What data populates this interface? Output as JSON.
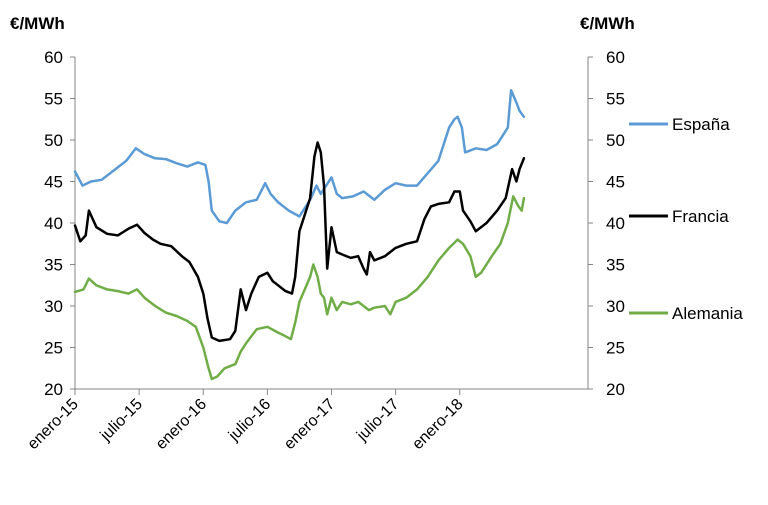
{
  "chart_data": {
    "type": "line",
    "title": "",
    "y_unit_left": "€/MWh",
    "y_unit_right": "€/MWh",
    "ylim": [
      20,
      60
    ],
    "yticks": [
      20,
      25,
      30,
      35,
      40,
      45,
      50,
      55,
      60
    ],
    "xlim": [
      0,
      48
    ],
    "x_unit": "months since enero-15",
    "xticks": [
      {
        "label": "enero-15",
        "x": 0
      },
      {
        "label": "julio-15",
        "x": 6
      },
      {
        "label": "enero-16",
        "x": 12
      },
      {
        "label": "julio-16",
        "x": 18
      },
      {
        "label": "enero-17",
        "x": 24
      },
      {
        "label": "julio-17",
        "x": 30
      },
      {
        "label": "enero-18",
        "x": 36
      }
    ],
    "legend_position": "right",
    "series": [
      {
        "name": "España",
        "color": "#5b9bd5",
        "points": [
          [
            0,
            46.2
          ],
          [
            0.7,
            44.5
          ],
          [
            1.5,
            45.0
          ],
          [
            2.5,
            45.2
          ],
          [
            3.5,
            46.2
          ],
          [
            4.8,
            47.5
          ],
          [
            5.7,
            49.0
          ],
          [
            6.5,
            48.3
          ],
          [
            7.5,
            47.8
          ],
          [
            8.5,
            47.7
          ],
          [
            9.5,
            47.2
          ],
          [
            10.5,
            46.8
          ],
          [
            11.5,
            47.3
          ],
          [
            12.2,
            47.0
          ],
          [
            12.5,
            45.0
          ],
          [
            12.8,
            41.5
          ],
          [
            13.5,
            40.2
          ],
          [
            14.2,
            40.0
          ],
          [
            15,
            41.5
          ],
          [
            16,
            42.5
          ],
          [
            17,
            42.8
          ],
          [
            17.8,
            44.8
          ],
          [
            18.3,
            43.5
          ],
          [
            19,
            42.5
          ],
          [
            20,
            41.5
          ],
          [
            21,
            40.8
          ],
          [
            21.5,
            41.8
          ],
          [
            22,
            42.8
          ],
          [
            22.6,
            44.5
          ],
          [
            23,
            43.5
          ],
          [
            23.5,
            44.5
          ],
          [
            24,
            45.5
          ],
          [
            24.5,
            43.5
          ],
          [
            25,
            43.0
          ],
          [
            26,
            43.2
          ],
          [
            27,
            43.8
          ],
          [
            28,
            42.8
          ],
          [
            29,
            44.0
          ],
          [
            30,
            44.8
          ],
          [
            31,
            44.5
          ],
          [
            32,
            44.5
          ],
          [
            33,
            46.0
          ],
          [
            34,
            47.5
          ],
          [
            35,
            51.5
          ],
          [
            35.5,
            52.5
          ],
          [
            35.8,
            52.8
          ],
          [
            36.2,
            51.5
          ],
          [
            36.5,
            48.5
          ],
          [
            37.5,
            49.0
          ],
          [
            38.5,
            48.8
          ],
          [
            39.5,
            49.5
          ],
          [
            40,
            50.5
          ],
          [
            40.5,
            51.5
          ],
          [
            40.8,
            56.0
          ],
          [
            41.3,
            54.5
          ],
          [
            41.6,
            53.5
          ],
          [
            42,
            52.8
          ]
        ]
      },
      {
        "name": "Francia",
        "color": "#000000",
        "points": [
          [
            0,
            39.7
          ],
          [
            0.5,
            37.8
          ],
          [
            1,
            38.5
          ],
          [
            1.3,
            41.5
          ],
          [
            2,
            39.5
          ],
          [
            3,
            38.7
          ],
          [
            4,
            38.5
          ],
          [
            5,
            39.3
          ],
          [
            5.8,
            39.8
          ],
          [
            6.5,
            38.8
          ],
          [
            7.3,
            38.0
          ],
          [
            8,
            37.5
          ],
          [
            9,
            37.2
          ],
          [
            10,
            36.0
          ],
          [
            10.7,
            35.3
          ],
          [
            11.5,
            33.5
          ],
          [
            12,
            31.5
          ],
          [
            12.4,
            28.5
          ],
          [
            12.8,
            26.2
          ],
          [
            13.5,
            25.8
          ],
          [
            14.5,
            26.0
          ],
          [
            15,
            27.0
          ],
          [
            15.5,
            32.0
          ],
          [
            16,
            29.5
          ],
          [
            16.5,
            31.5
          ],
          [
            17.2,
            33.5
          ],
          [
            18,
            34.0
          ],
          [
            18.5,
            33.0
          ],
          [
            19,
            32.5
          ],
          [
            19.7,
            31.8
          ],
          [
            20.3,
            31.5
          ],
          [
            20.6,
            33.5
          ],
          [
            21,
            39.0
          ],
          [
            21.5,
            41.0
          ],
          [
            22,
            43.0
          ],
          [
            22.4,
            48.0
          ],
          [
            22.7,
            49.7
          ],
          [
            23,
            48.5
          ],
          [
            23.3,
            44.5
          ],
          [
            23.6,
            34.5
          ],
          [
            24,
            39.5
          ],
          [
            24.5,
            36.5
          ],
          [
            25,
            36.2
          ],
          [
            25.8,
            35.8
          ],
          [
            26.5,
            36.0
          ],
          [
            27,
            34.5
          ],
          [
            27.3,
            33.8
          ],
          [
            27.6,
            36.5
          ],
          [
            28,
            35.5
          ],
          [
            29,
            36.0
          ],
          [
            30,
            37.0
          ],
          [
            31,
            37.5
          ],
          [
            32,
            37.8
          ],
          [
            32.7,
            40.5
          ],
          [
            33.3,
            42.0
          ],
          [
            34,
            42.3
          ],
          [
            35,
            42.5
          ],
          [
            35.5,
            43.8
          ],
          [
            36,
            43.8
          ],
          [
            36.3,
            41.5
          ],
          [
            37,
            40.2
          ],
          [
            37.5,
            39.0
          ],
          [
            38.5,
            40.0
          ],
          [
            39.5,
            41.5
          ],
          [
            40.3,
            43.0
          ],
          [
            40.9,
            46.5
          ],
          [
            41.3,
            45.0
          ],
          [
            41.6,
            46.5
          ],
          [
            42,
            47.8
          ]
        ]
      },
      {
        "name": "Alemania",
        "color": "#70ad47",
        "points": [
          [
            0,
            31.7
          ],
          [
            0.8,
            32.0
          ],
          [
            1.3,
            33.3
          ],
          [
            2,
            32.5
          ],
          [
            3,
            32.0
          ],
          [
            4,
            31.8
          ],
          [
            5,
            31.5
          ],
          [
            5.8,
            32.0
          ],
          [
            6.5,
            31.0
          ],
          [
            7.5,
            30.0
          ],
          [
            8.5,
            29.2
          ],
          [
            9.5,
            28.8
          ],
          [
            10.5,
            28.2
          ],
          [
            11.3,
            27.5
          ],
          [
            12,
            25.0
          ],
          [
            12.5,
            22.5
          ],
          [
            12.8,
            21.2
          ],
          [
            13.3,
            21.5
          ],
          [
            14,
            22.5
          ],
          [
            15,
            23.0
          ],
          [
            15.5,
            24.5
          ],
          [
            16,
            25.5
          ],
          [
            17,
            27.2
          ],
          [
            18,
            27.5
          ],
          [
            19,
            26.8
          ],
          [
            19.5,
            26.5
          ],
          [
            20.2,
            26.0
          ],
          [
            20.6,
            28.0
          ],
          [
            21,
            30.5
          ],
          [
            21.5,
            32.0
          ],
          [
            22,
            33.5
          ],
          [
            22.3,
            35.0
          ],
          [
            22.7,
            33.5
          ],
          [
            23,
            31.5
          ],
          [
            23.3,
            31.0
          ],
          [
            23.6,
            29.0
          ],
          [
            24,
            31.0
          ],
          [
            24.5,
            29.5
          ],
          [
            25,
            30.5
          ],
          [
            25.8,
            30.2
          ],
          [
            26.5,
            30.5
          ],
          [
            27,
            30.0
          ],
          [
            27.5,
            29.5
          ],
          [
            28,
            29.8
          ],
          [
            29,
            30.0
          ],
          [
            29.5,
            29.0
          ],
          [
            30,
            30.5
          ],
          [
            31,
            31.0
          ],
          [
            32,
            32.0
          ],
          [
            33,
            33.5
          ],
          [
            34,
            35.5
          ],
          [
            35,
            37.0
          ],
          [
            35.8,
            38.0
          ],
          [
            36.3,
            37.5
          ],
          [
            37,
            36.0
          ],
          [
            37.5,
            33.5
          ],
          [
            38,
            34.0
          ],
          [
            39,
            36.0
          ],
          [
            39.8,
            37.5
          ],
          [
            40.5,
            40.0
          ],
          [
            41,
            43.2
          ],
          [
            41.5,
            42.0
          ],
          [
            41.8,
            41.5
          ],
          [
            42,
            43.0
          ]
        ]
      }
    ]
  }
}
